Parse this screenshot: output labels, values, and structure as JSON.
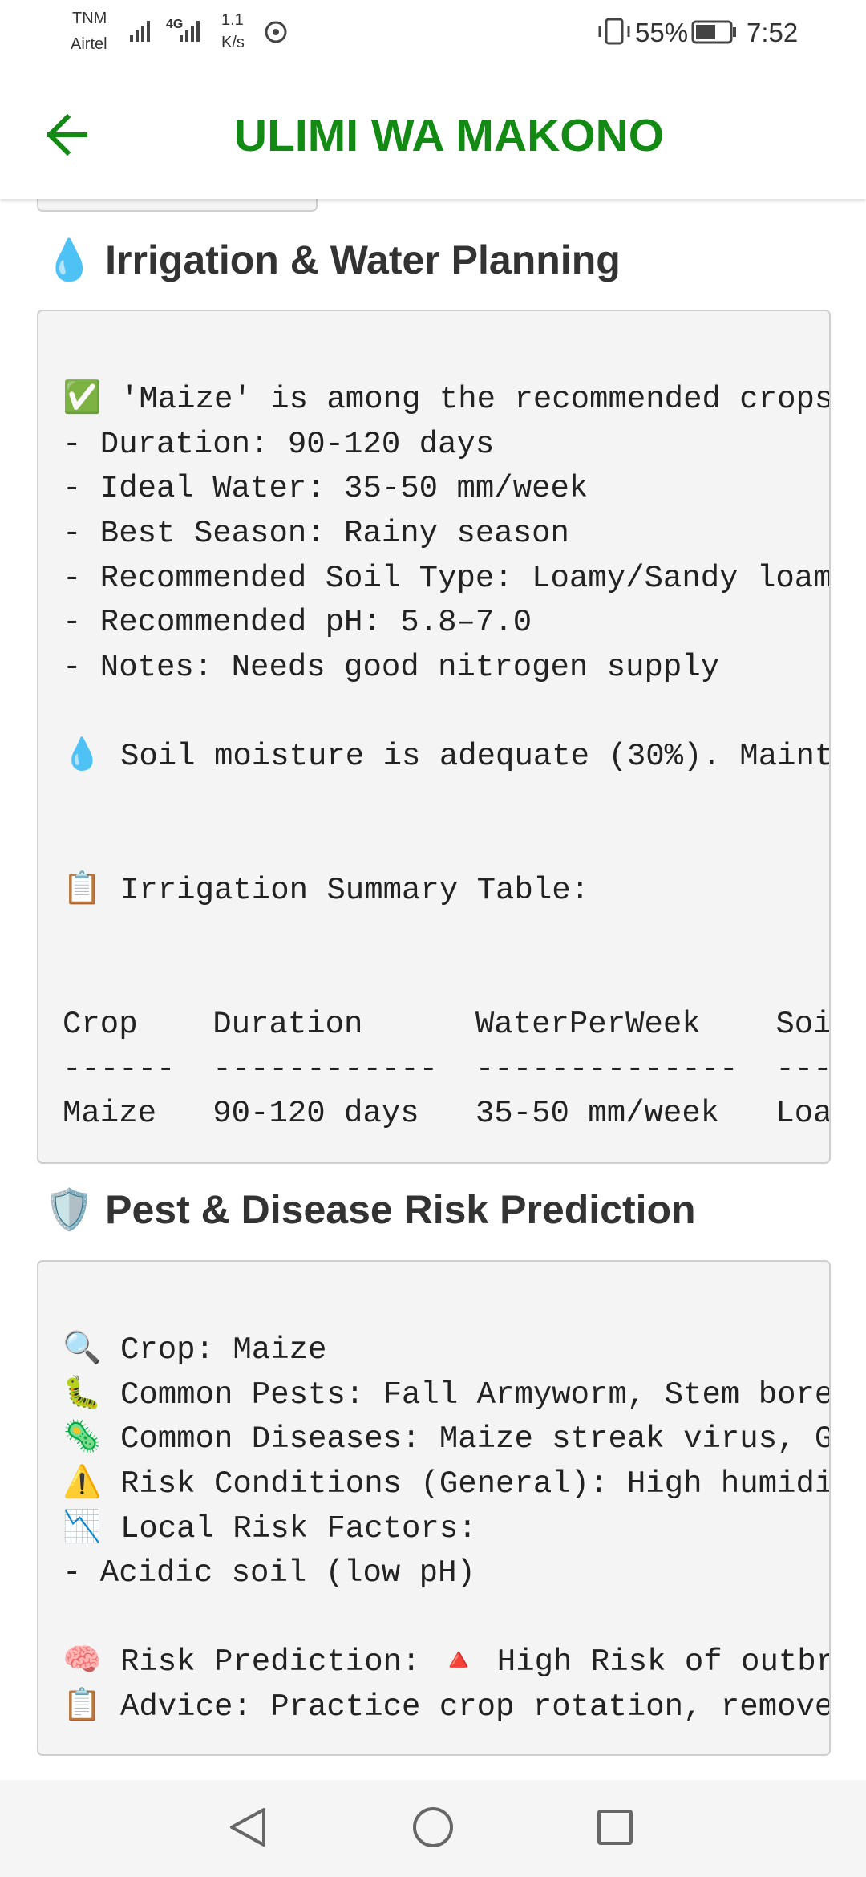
{
  "status_bar": {
    "carrier": "TNM",
    "network": "Airtel",
    "signal_type": "4G",
    "speed": "1.1",
    "speed_unit": "K/s",
    "battery": "55%",
    "time": "7:52"
  },
  "app_bar": {
    "title": "ULIMI WA MAKONO"
  },
  "sections": [
    {
      "heading": "💧 Irrigation & Water Planning",
      "lines": [
        "✅ 'Maize' is among the recommended crops",
        "- Duration: 90-120 days",
        "- Ideal Water: 35-50 mm/week",
        "- Best Season: Rainy season",
        "- Recommended Soil Type: Loamy/Sandy loam",
        "- Recommended pH: 5.8–7.0",
        "- Notes: Needs good nitrogen supply",
        "💧 Soil moisture is adequate (30%). Maint",
        "📋 Irrigation Summary Table:",
        "Crop    Duration      WaterPerWeek    Soi",
        "------  ------------  --------------  ---",
        "Maize   90-120 days   35-50 mm/week   Loa"
      ]
    },
    {
      "heading": "🛡️ Pest & Disease Risk Prediction",
      "lines": [
        "🔍 Crop: Maize",
        "🐛 Common Pests: Fall Armyworm, Stem bore",
        "🦠 Common Diseases: Maize streak virus, G",
        "⚠️ Risk Conditions (General): High humidi",
        "📉 Local Risk Factors:",
        "- Acidic soil (low pH)",
        "🧠 Risk Prediction: 🔺 High Risk of outbr",
        "📋 Advice: Practice crop rotation, remove"
      ]
    }
  ]
}
